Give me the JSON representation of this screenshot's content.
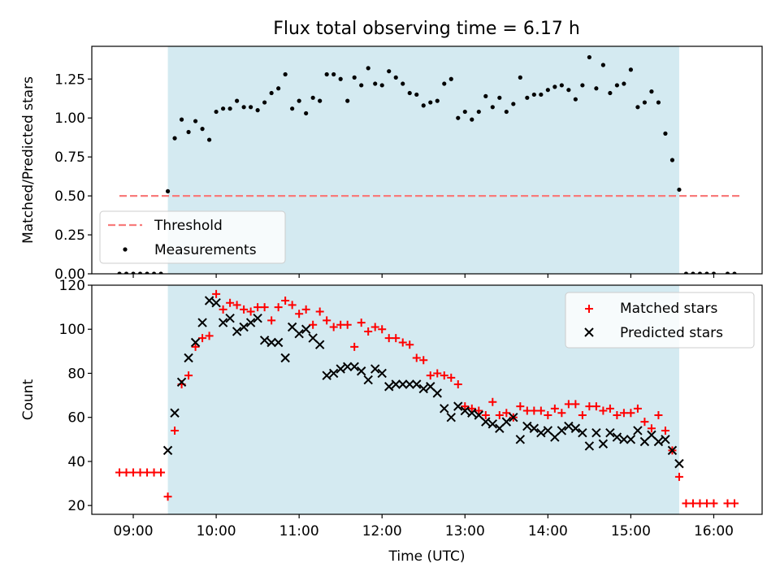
{
  "title": "Flux total observing time = 6.17 h",
  "colors": {
    "observing_band": "#d4eaf1",
    "threshold": "#f87b7b",
    "measurements": "#000000",
    "matched": "#ff0000",
    "predicted": "#000000"
  },
  "chart_data": [
    {
      "type": "scatter",
      "ylabel": "Matched/Predicted stars",
      "ylim": [
        0,
        1.46
      ],
      "yticks": [
        "0.00",
        "0.25",
        "0.50",
        "0.75",
        "1.00",
        "1.25"
      ],
      "xlim": [
        "08:30",
        "16:35"
      ],
      "shaded_region": [
        "09:25",
        "15:35"
      ],
      "legend": {
        "placement": "lower left",
        "entries": [
          "Threshold",
          "Measurements"
        ]
      },
      "threshold": {
        "name": "Threshold",
        "value": 0.5,
        "x_range": [
          "08:50",
          "16:20"
        ]
      },
      "series": [
        {
          "name": "Measurements",
          "points": [
            [
              "08:50",
              0
            ],
            [
              "08:55",
              0
            ],
            [
              "09:00",
              0
            ],
            [
              "09:05",
              0
            ],
            [
              "09:10",
              0
            ],
            [
              "09:15",
              0
            ],
            [
              "09:20",
              0
            ],
            [
              "09:25",
              0.53
            ],
            [
              "09:30",
              0.87
            ],
            [
              "09:35",
              0.99
            ],
            [
              "09:40",
              0.91
            ],
            [
              "09:45",
              0.98
            ],
            [
              "09:50",
              0.93
            ],
            [
              "09:55",
              0.86
            ],
            [
              "10:00",
              1.04
            ],
            [
              "10:05",
              1.06
            ],
            [
              "10:10",
              1.06
            ],
            [
              "10:15",
              1.11
            ],
            [
              "10:20",
              1.07
            ],
            [
              "10:25",
              1.07
            ],
            [
              "10:30",
              1.05
            ],
            [
              "10:35",
              1.1
            ],
            [
              "10:40",
              1.16
            ],
            [
              "10:45",
              1.19
            ],
            [
              "10:50",
              1.28
            ],
            [
              "10:55",
              1.06
            ],
            [
              "11:00",
              1.11
            ],
            [
              "11:05",
              1.03
            ],
            [
              "11:10",
              1.13
            ],
            [
              "11:15",
              1.11
            ],
            [
              "11:20",
              1.28
            ],
            [
              "11:25",
              1.28
            ],
            [
              "11:30",
              1.25
            ],
            [
              "11:35",
              1.11
            ],
            [
              "11:40",
              1.26
            ],
            [
              "11:45",
              1.21
            ],
            [
              "11:50",
              1.32
            ],
            [
              "11:55",
              1.22
            ],
            [
              "12:00",
              1.21
            ],
            [
              "12:05",
              1.3
            ],
            [
              "12:10",
              1.26
            ],
            [
              "12:15",
              1.22
            ],
            [
              "12:20",
              1.16
            ],
            [
              "12:25",
              1.15
            ],
            [
              "12:30",
              1.08
            ],
            [
              "12:35",
              1.1
            ],
            [
              "12:40",
              1.11
            ],
            [
              "12:45",
              1.22
            ],
            [
              "12:50",
              1.25
            ],
            [
              "12:55",
              1.0
            ],
            [
              "13:00",
              1.04
            ],
            [
              "13:05",
              0.99
            ],
            [
              "13:10",
              1.04
            ],
            [
              "13:15",
              1.14
            ],
            [
              "13:20",
              1.07
            ],
            [
              "13:25",
              1.13
            ],
            [
              "13:30",
              1.04
            ],
            [
              "13:35",
              1.09
            ],
            [
              "13:40",
              1.26
            ],
            [
              "13:45",
              1.13
            ],
            [
              "13:50",
              1.15
            ],
            [
              "13:55",
              1.15
            ],
            [
              "14:00",
              1.18
            ],
            [
              "14:05",
              1.2
            ],
            [
              "14:10",
              1.21
            ],
            [
              "14:15",
              1.18
            ],
            [
              "14:20",
              1.12
            ],
            [
              "14:25",
              1.21
            ],
            [
              "14:30",
              1.39
            ],
            [
              "14:35",
              1.19
            ],
            [
              "14:40",
              1.34
            ],
            [
              "14:45",
              1.16
            ],
            [
              "14:50",
              1.21
            ],
            [
              "14:55",
              1.22
            ],
            [
              "15:00",
              1.31
            ],
            [
              "15:05",
              1.07
            ],
            [
              "15:10",
              1.1
            ],
            [
              "15:15",
              1.17
            ],
            [
              "15:20",
              1.1
            ],
            [
              "15:25",
              0.9
            ],
            [
              "15:30",
              0.73
            ],
            [
              "15:35",
              0.54
            ],
            [
              "15:40",
              0
            ],
            [
              "15:45",
              0
            ],
            [
              "15:50",
              0
            ],
            [
              "15:55",
              0
            ],
            [
              "16:00",
              0
            ],
            [
              "16:10",
              0
            ],
            [
              "16:15",
              0
            ]
          ]
        }
      ]
    },
    {
      "type": "scatter",
      "ylabel": "Count",
      "xlabel": "Time (UTC)",
      "ylim": [
        16,
        120
      ],
      "yticks": [
        "20",
        "40",
        "60",
        "80",
        "100",
        "120"
      ],
      "xticks": [
        "09:00",
        "10:00",
        "11:00",
        "12:00",
        "13:00",
        "14:00",
        "15:00",
        "16:00"
      ],
      "xlim": [
        "08:30",
        "16:35"
      ],
      "shaded_region": [
        "09:25",
        "15:35"
      ],
      "legend": {
        "placement": "upper right",
        "entries": [
          "Matched stars",
          "Predicted stars"
        ]
      },
      "series": [
        {
          "name": "Matched stars",
          "marker": "plus",
          "points": [
            [
              "08:50",
              35
            ],
            [
              "08:55",
              35
            ],
            [
              "09:00",
              35
            ],
            [
              "09:05",
              35
            ],
            [
              "09:10",
              35
            ],
            [
              "09:15",
              35
            ],
            [
              "09:20",
              35
            ],
            [
              "09:25",
              24
            ],
            [
              "09:30",
              54
            ],
            [
              "09:35",
              75
            ],
            [
              "09:40",
              79
            ],
            [
              "09:45",
              92
            ],
            [
              "09:50",
              96
            ],
            [
              "09:55",
              97
            ],
            [
              "10:00",
              116
            ],
            [
              "10:05",
              109
            ],
            [
              "10:10",
              112
            ],
            [
              "10:15",
              111
            ],
            [
              "10:20",
              109
            ],
            [
              "10:25",
              108
            ],
            [
              "10:30",
              110
            ],
            [
              "10:35",
              110
            ],
            [
              "10:40",
              104
            ],
            [
              "10:45",
              110
            ],
            [
              "10:50",
              113
            ],
            [
              "10:55",
              111
            ],
            [
              "11:00",
              107
            ],
            [
              "11:05",
              109
            ],
            [
              "11:10",
              102
            ],
            [
              "11:15",
              108
            ],
            [
              "11:20",
              104
            ],
            [
              "11:25",
              101
            ],
            [
              "11:30",
              102
            ],
            [
              "11:35",
              102
            ],
            [
              "11:40",
              92
            ],
            [
              "11:45",
              103
            ],
            [
              "11:50",
              99
            ],
            [
              "11:55",
              101
            ],
            [
              "12:00",
              100
            ],
            [
              "12:05",
              96
            ],
            [
              "12:10",
              96
            ],
            [
              "12:15",
              94
            ],
            [
              "12:20",
              93
            ],
            [
              "12:25",
              87
            ],
            [
              "12:30",
              86
            ],
            [
              "12:35",
              79
            ],
            [
              "12:40",
              80
            ],
            [
              "12:45",
              79
            ],
            [
              "12:50",
              78
            ],
            [
              "12:55",
              75
            ],
            [
              "13:00",
              65
            ],
            [
              "13:05",
              64
            ],
            [
              "13:10",
              63
            ],
            [
              "13:15",
              61
            ],
            [
              "13:20",
              67
            ],
            [
              "13:25",
              61
            ],
            [
              "13:30",
              62
            ],
            [
              "13:35",
              60
            ],
            [
              "13:40",
              65
            ],
            [
              "13:45",
              63
            ],
            [
              "13:50",
              63
            ],
            [
              "13:55",
              63
            ],
            [
              "14:00",
              61
            ],
            [
              "14:05",
              64
            ],
            [
              "14:10",
              62
            ],
            [
              "14:15",
              66
            ],
            [
              "14:20",
              66
            ],
            [
              "14:25",
              61
            ],
            [
              "14:30",
              65
            ],
            [
              "14:35",
              65
            ],
            [
              "14:40",
              63
            ],
            [
              "14:45",
              64
            ],
            [
              "14:50",
              61
            ],
            [
              "14:55",
              62
            ],
            [
              "15:00",
              62
            ],
            [
              "15:05",
              64
            ],
            [
              "15:10",
              58
            ],
            [
              "15:15",
              55
            ],
            [
              "15:20",
              61
            ],
            [
              "15:25",
              54
            ],
            [
              "15:30",
              45
            ],
            [
              "15:35",
              33
            ],
            [
              "15:40",
              21
            ],
            [
              "15:45",
              21
            ],
            [
              "15:50",
              21
            ],
            [
              "15:55",
              21
            ],
            [
              "16:00",
              21
            ],
            [
              "16:10",
              21
            ],
            [
              "16:15",
              21
            ]
          ]
        },
        {
          "name": "Predicted stars",
          "marker": "x",
          "points": [
            [
              "09:25",
              45
            ],
            [
              "09:30",
              62
            ],
            [
              "09:35",
              76
            ],
            [
              "09:40",
              87
            ],
            [
              "09:45",
              94
            ],
            [
              "09:50",
              103
            ],
            [
              "09:55",
              113
            ],
            [
              "10:00",
              112
            ],
            [
              "10:05",
              103
            ],
            [
              "10:10",
              105
            ],
            [
              "10:15",
              99
            ],
            [
              "10:20",
              101
            ],
            [
              "10:25",
              103
            ],
            [
              "10:30",
              105
            ],
            [
              "10:35",
              95
            ],
            [
              "10:40",
              94
            ],
            [
              "10:45",
              94
            ],
            [
              "10:50",
              87
            ],
            [
              "10:55",
              101
            ],
            [
              "11:00",
              98
            ],
            [
              "11:05",
              100
            ],
            [
              "11:10",
              96
            ],
            [
              "11:15",
              93
            ],
            [
              "11:20",
              79
            ],
            [
              "11:25",
              80
            ],
            [
              "11:30",
              82
            ],
            [
              "11:35",
              83
            ],
            [
              "11:40",
              83
            ],
            [
              "11:45",
              81
            ],
            [
              "11:50",
              77
            ],
            [
              "11:55",
              82
            ],
            [
              "12:00",
              80
            ],
            [
              "12:05",
              74
            ],
            [
              "12:10",
              75
            ],
            [
              "12:15",
              75
            ],
            [
              "12:20",
              75
            ],
            [
              "12:25",
              75
            ],
            [
              "12:30",
              73
            ],
            [
              "12:35",
              74
            ],
            [
              "12:40",
              71
            ],
            [
              "12:45",
              64
            ],
            [
              "12:50",
              60
            ],
            [
              "12:55",
              65
            ],
            [
              "13:00",
              63
            ],
            [
              "13:05",
              62
            ],
            [
              "13:10",
              61
            ],
            [
              "13:15",
              58
            ],
            [
              "13:20",
              57
            ],
            [
              "13:25",
              55
            ],
            [
              "13:30",
              58
            ],
            [
              "13:35",
              60
            ],
            [
              "13:40",
              50
            ],
            [
              "13:45",
              56
            ],
            [
              "13:50",
              55
            ],
            [
              "13:55",
              53
            ],
            [
              "14:00",
              54
            ],
            [
              "14:05",
              51
            ],
            [
              "14:10",
              54
            ],
            [
              "14:15",
              56
            ],
            [
              "14:20",
              55
            ],
            [
              "14:25",
              53
            ],
            [
              "14:30",
              47
            ],
            [
              "14:35",
              53
            ],
            [
              "14:40",
              48
            ],
            [
              "14:45",
              53
            ],
            [
              "14:50",
              51
            ],
            [
              "14:55",
              50
            ],
            [
              "15:00",
              50
            ],
            [
              "15:05",
              54
            ],
            [
              "15:10",
              49
            ],
            [
              "15:15",
              52
            ],
            [
              "15:20",
              49
            ],
            [
              "15:25",
              50
            ],
            [
              "15:30",
              45
            ],
            [
              "15:35",
              39
            ]
          ]
        }
      ]
    }
  ]
}
